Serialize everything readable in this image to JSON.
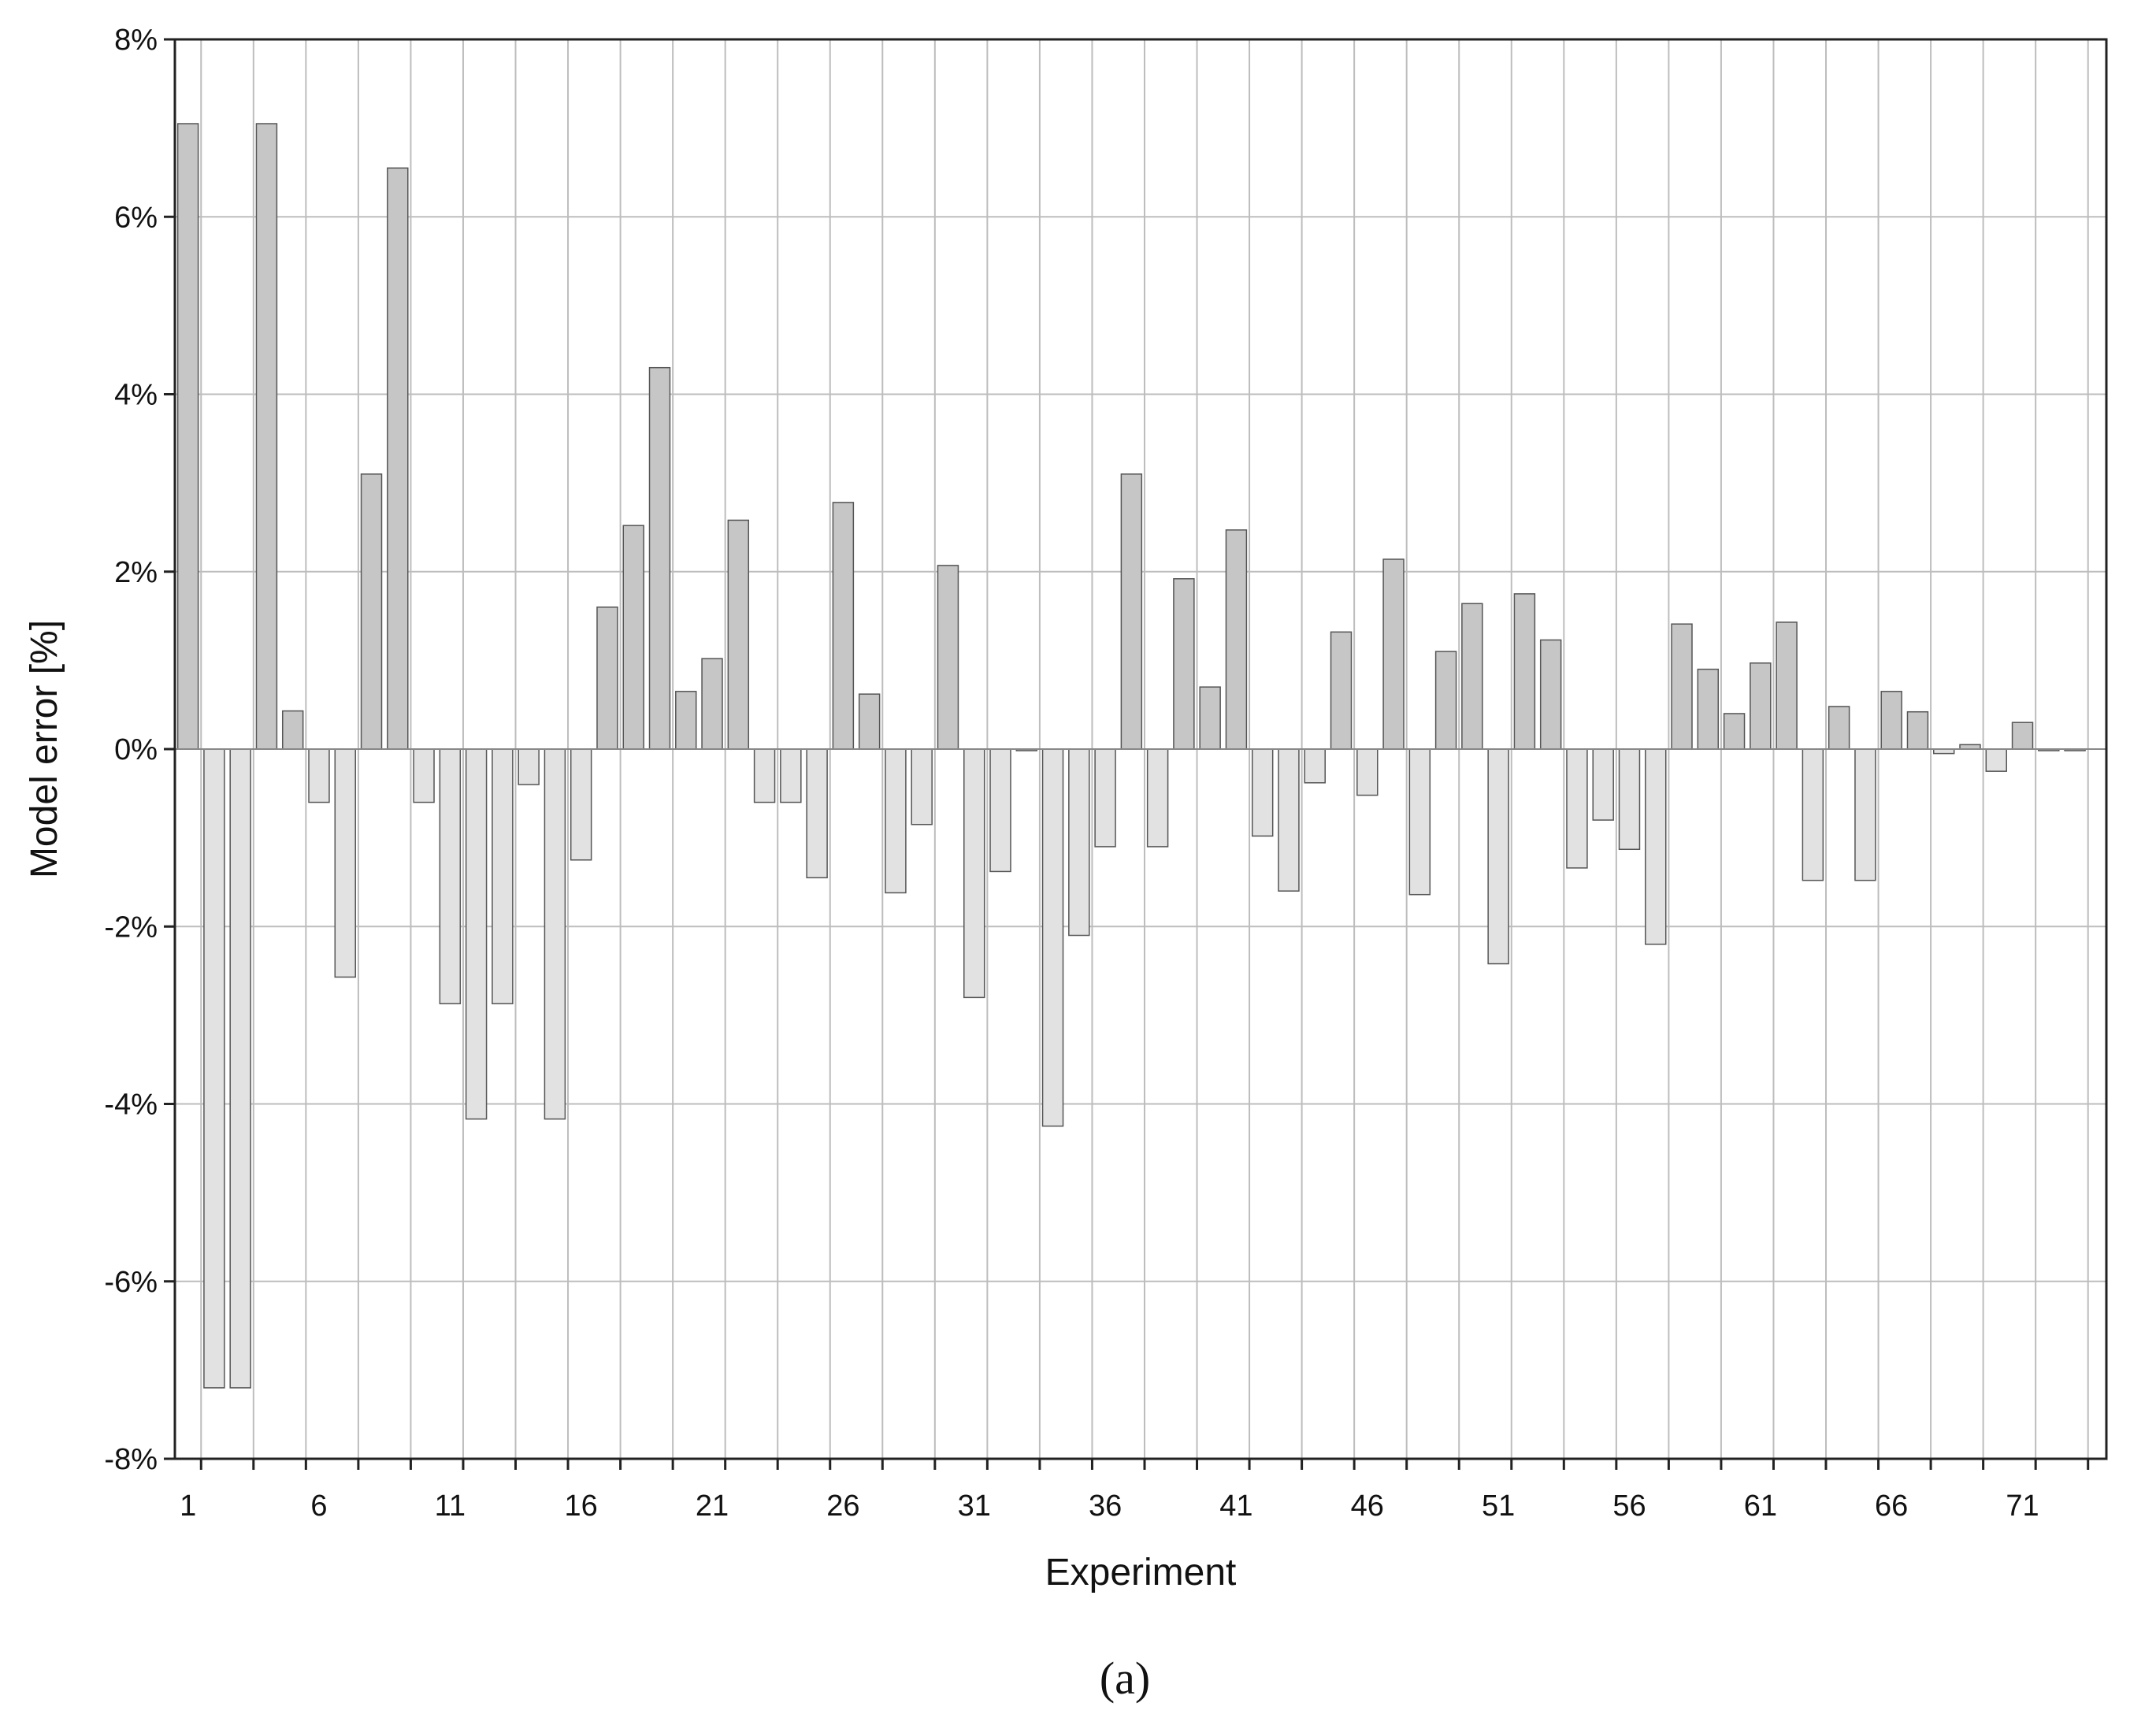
{
  "chart_data": {
    "type": "bar",
    "xlabel": "Experiment",
    "ylabel": "Model error [%]",
    "caption": "(a)",
    "ylim": [
      -8,
      8
    ],
    "y_ticks": [
      "8%",
      "6%",
      "4%",
      "2%",
      "0%",
      "-2%",
      "-4%",
      "-6%",
      "-8%"
    ],
    "y_tick_values": [
      8,
      6,
      4,
      2,
      0,
      -2,
      -4,
      -6,
      -8
    ],
    "x_ticks": [
      "1",
      "6",
      "11",
      "16",
      "21",
      "26",
      "31",
      "36",
      "41",
      "46",
      "51",
      "56",
      "61",
      "66",
      "71"
    ],
    "x_tick_values": [
      1,
      6,
      11,
      16,
      21,
      26,
      31,
      36,
      41,
      46,
      51,
      56,
      61,
      66,
      71
    ],
    "grid": true,
    "x": [
      1,
      2,
      3,
      4,
      5,
      6,
      7,
      8,
      9,
      10,
      11,
      12,
      13,
      14,
      15,
      16,
      17,
      18,
      19,
      20,
      21,
      22,
      23,
      24,
      25,
      26,
      27,
      28,
      29,
      30,
      31,
      32,
      33,
      34,
      35,
      36,
      37,
      38,
      39,
      40,
      41,
      42,
      43,
      44,
      45,
      46,
      47,
      48,
      49,
      50,
      51,
      52,
      53,
      54,
      55,
      56,
      57,
      58,
      59,
      60,
      61,
      62,
      63,
      64,
      65,
      66,
      67,
      68,
      69,
      70,
      71,
      72,
      73
    ],
    "values": [
      7.05,
      -7.2,
      -7.2,
      7.05,
      0.43,
      -0.6,
      -2.57,
      3.1,
      6.55,
      -0.6,
      -2.87,
      -4.17,
      -2.87,
      -0.4,
      -4.17,
      -1.25,
      1.6,
      2.52,
      4.3,
      0.65,
      1.02,
      2.58,
      -0.6,
      -0.6,
      -1.45,
      2.78,
      0.62,
      -1.62,
      -0.85,
      2.07,
      -2.8,
      -1.38,
      0.0,
      -4.25,
      -2.1,
      -1.1,
      3.1,
      -1.1,
      1.92,
      0.7,
      2.47,
      -0.98,
      -1.6,
      -0.38,
      1.32,
      -0.52,
      2.14,
      -1.64,
      1.1,
      1.64,
      -2.42,
      1.75,
      1.23,
      -1.34,
      -0.8,
      -1.13,
      -2.2,
      1.41,
      0.9,
      0.4,
      0.97,
      1.43,
      -1.48,
      0.48,
      -1.48,
      0.65,
      0.42,
      -0.05,
      0.05,
      -0.25,
      0.3,
      0.0,
      0.0
    ],
    "colors": {
      "positive_bar": "#c6c6c6",
      "negative_bar": "#e2e2e2",
      "bar_edge": "#555555",
      "grid": "#bdbdbd",
      "axis": "#222222"
    }
  }
}
